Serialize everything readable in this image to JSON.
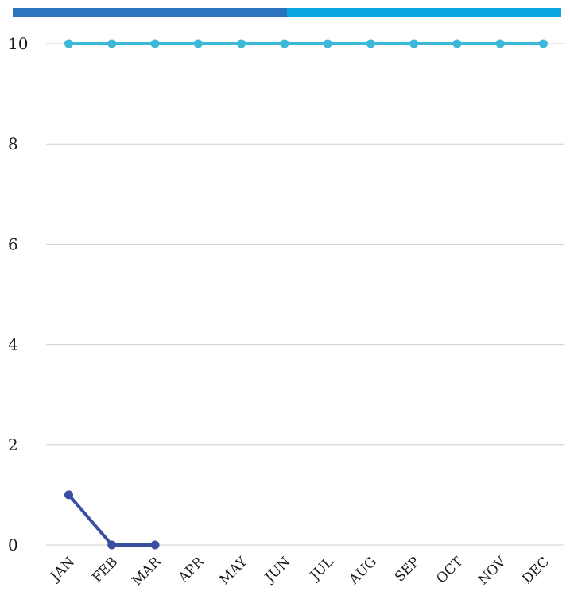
{
  "chart_data": {
    "type": "line",
    "title": "",
    "xlabel": "",
    "ylabel": "",
    "categories": [
      "JAN",
      "FEB",
      "MAR",
      "APR",
      "MAY",
      "JUN",
      "JUL",
      "AUG",
      "SEP",
      "OCT",
      "NOV",
      "DEC"
    ],
    "ylim": [
      0,
      10
    ],
    "yticks": [
      0,
      2,
      4,
      6,
      8,
      10
    ],
    "grid": true,
    "legend": "top",
    "series": [
      {
        "color": "#3a4fa0",
        "legend_color": "#2b74bd",
        "values": [
          1,
          0,
          0,
          null,
          null,
          null,
          null,
          null,
          null,
          null,
          null,
          null
        ]
      },
      {
        "color": "#3db8d8",
        "legend_color": "#08a7e2",
        "values": [
          10,
          10,
          10,
          10,
          10,
          10,
          10,
          10,
          10,
          10,
          10,
          10
        ]
      }
    ]
  }
}
